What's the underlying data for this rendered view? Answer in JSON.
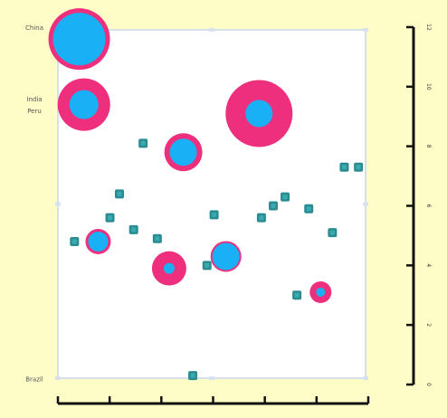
{
  "colors": {
    "background": "#fefdc8",
    "plot_bg": "#ffffff",
    "frame": "#c9d6e8",
    "bubble_fill": "#1ab0f5",
    "bubble_ring": "#ee2f7d",
    "small_marker": "#2a8c91",
    "axis": "#111111"
  },
  "chart_data": {
    "type": "scatter",
    "title": "",
    "xlabel": "",
    "ylabel": "",
    "ylim": [
      0,
      12
    ],
    "xlim": [
      0,
      6.5
    ],
    "yticks": [
      "0",
      "2",
      "4",
      "6",
      "8",
      "10",
      "12"
    ],
    "x_tick_count": 7,
    "category_labels": [
      {
        "text": "China",
        "y": 12
      },
      {
        "text": "India",
        "y": 9.6
      },
      {
        "text": "Peru",
        "y": 9.2
      },
      {
        "text": "Brazil",
        "y": 0.2
      }
    ],
    "grid": false,
    "series": [
      {
        "kind": "small",
        "points": [
          [
            0.35,
            4.8
          ],
          [
            1.8,
            8.1
          ],
          [
            1.3,
            6.4
          ],
          [
            1.1,
            5.6
          ],
          [
            1.6,
            5.2
          ],
          [
            2.1,
            4.9
          ],
          [
            2.85,
            0.3
          ],
          [
            3.15,
            4.0
          ],
          [
            3.3,
            5.7
          ],
          [
            4.3,
            5.6
          ],
          [
            4.55,
            6.0
          ],
          [
            4.8,
            6.3
          ],
          [
            5.05,
            3.0
          ],
          [
            5.3,
            5.9
          ],
          [
            5.8,
            5.1
          ],
          [
            6.05,
            7.3
          ],
          [
            6.35,
            7.3
          ]
        ]
      },
      {
        "kind": "bubble",
        "points": [
          {
            "x": 0.45,
            "y": 11.6,
            "outer": 34,
            "inner": 29
          },
          {
            "x": 0.55,
            "y": 9.4,
            "outer": 29,
            "inner": 16
          },
          {
            "x": 2.65,
            "y": 7.8,
            "outer": 21,
            "inner": 15
          },
          {
            "x": 4.25,
            "y": 9.1,
            "outer": 37,
            "inner": 15
          },
          {
            "x": 0.85,
            "y": 4.8,
            "outer": 14,
            "inner": 11
          },
          {
            "x": 2.35,
            "y": 3.9,
            "outer": 19,
            "inner": 6
          },
          {
            "x": 3.55,
            "y": 4.3,
            "outer": 17,
            "inner": 15
          },
          {
            "x": 5.55,
            "y": 3.1,
            "outer": 12,
            "inner": 5
          }
        ]
      }
    ]
  }
}
